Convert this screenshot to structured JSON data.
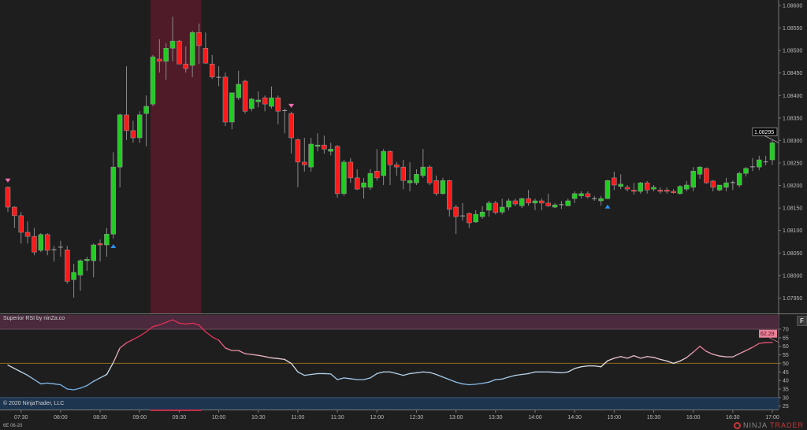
{
  "indicator": {
    "title": "Superior RSI by ninZa.co",
    "last_value_label": "62.29"
  },
  "footer": {
    "copyright": "© 2020 NinjaTrader, LLC",
    "instrument": "6E 06-20",
    "logo_left": "NINJA",
    "logo_right": "TRADER",
    "logo_mark": "®"
  },
  "buttons": {
    "f_label": "F"
  },
  "colors": {
    "background": "#1e1e1e",
    "up": "#22cc22",
    "down": "#ff1a1a",
    "wick": "#8a8a8a",
    "highlight_zone": "#4f1b28",
    "overbought_zone": "#4a2a3c",
    "oversold_zone": "#1e3550",
    "midline": "#8a6a1a",
    "rsi_high": "#e8305a",
    "rsi_low": "#6aaee8",
    "sell_signal": "#ff6fb0",
    "buy_signal": "#2a8ff0",
    "last_price_bg": "#000000"
  },
  "chart_data": [
    {
      "type": "candlestick",
      "title": "",
      "y_axis": {
        "range": [
          1.0792,
          1.0861
        ],
        "ticks": [
          "1.08600",
          "1.08550",
          "1.08500",
          "1.08450",
          "1.08400",
          "1.08350",
          "1.08300",
          "1.08250",
          "1.08200",
          "1.08150",
          "1.08100",
          "1.08050",
          "1.08000",
          "1.07950"
        ],
        "position": "right"
      },
      "x_axis": {
        "ticks": [
          "07:30",
          "08:00",
          "08:30",
          "09:00",
          "09:30",
          "10:00",
          "10:30",
          "11:00",
          "11:30",
          "12:00",
          "12:30",
          "13:00",
          "13:30",
          "14:00",
          "14:30",
          "15:00",
          "15:30",
          "16:00",
          "16:30",
          "17:00"
        ]
      },
      "last_price_label": "1.08295",
      "grid": false,
      "highlight_zone": {
        "from": "09:10",
        "to": "09:45"
      },
      "signals": [
        {
          "time": "07:20",
          "type": "sell"
        },
        {
          "time": "08:40",
          "type": "buy"
        },
        {
          "time": "10:55",
          "type": "sell"
        },
        {
          "time": "14:55",
          "type": "buy"
        }
      ],
      "bars_columns": [
        "time",
        "open",
        "high",
        "low",
        "close"
      ],
      "bars": [
        [
          "07:20",
          1.08196,
          1.08198,
          1.08141,
          1.08152
        ],
        [
          "07:25",
          1.08152,
          1.08154,
          1.08106,
          1.08133
        ],
        [
          "07:30",
          1.08133,
          1.08141,
          1.08071,
          1.08096
        ],
        [
          "07:35",
          1.08096,
          1.0812,
          1.08071,
          1.08087
        ],
        [
          "07:40",
          1.08087,
          1.08106,
          1.08045,
          1.08052
        ],
        [
          "07:45",
          1.08056,
          1.08094,
          1.08052,
          1.08091
        ],
        [
          "07:50",
          1.08091,
          1.08094,
          1.08045,
          1.08056
        ],
        [
          "07:55",
          1.08057,
          1.08066,
          1.08031,
          1.08058
        ],
        [
          "08:00",
          1.08063,
          1.08077,
          1.08042,
          1.08063
        ],
        [
          "08:05",
          1.08057,
          1.08066,
          1.07982,
          1.07987
        ],
        [
          "08:10",
          1.07991,
          1.08026,
          1.07951,
          1.08007
        ],
        [
          "08:15",
          1.08001,
          1.08036,
          1.07966,
          1.08033
        ],
        [
          "08:20",
          1.08033,
          1.08042,
          1.0801,
          1.08036
        ],
        [
          "08:25",
          1.08033,
          1.08071,
          1.07996,
          1.08068
        ],
        [
          "08:30",
          1.08071,
          1.0808,
          1.08031,
          1.08068
        ],
        [
          "08:35",
          1.08068,
          1.08106,
          1.08042,
          1.08092
        ],
        [
          "08:40",
          1.08092,
          1.08274,
          1.08082,
          1.08241
        ],
        [
          "08:45",
          1.08241,
          1.0836,
          1.08196,
          1.08357
        ],
        [
          "08:50",
          1.08357,
          1.08465,
          1.08301,
          1.08322
        ],
        [
          "08:55",
          1.08322,
          1.08344,
          1.08295,
          1.08306
        ],
        [
          "09:00",
          1.08306,
          1.08365,
          1.08295,
          1.08357
        ],
        [
          "09:05",
          1.0836,
          1.084,
          1.08287,
          1.08376
        ],
        [
          "09:10",
          1.08381,
          1.0849,
          1.08376,
          1.08486
        ],
        [
          "09:15",
          1.08481,
          1.08525,
          1.08451,
          1.08476
        ],
        [
          "09:20",
          1.08476,
          1.08516,
          1.08435,
          1.08505
        ],
        [
          "09:25",
          1.08505,
          1.08575,
          1.08476,
          1.08521
        ],
        [
          "09:30",
          1.08521,
          1.08523,
          1.0847,
          1.0847
        ],
        [
          "09:35",
          1.0847,
          1.08509,
          1.08451,
          1.0846
        ],
        [
          "09:40",
          1.08467,
          1.08544,
          1.08441,
          1.0854
        ],
        [
          "09:45",
          1.0854,
          1.0856,
          1.0847,
          1.08511
        ],
        [
          "09:50",
          1.08505,
          1.0854,
          1.0847,
          1.08472
        ],
        [
          "09:55",
          1.0847,
          1.0849,
          1.08437,
          1.08441
        ],
        [
          "10:00",
          1.08441,
          1.08465,
          1.08421,
          1.0844
        ],
        [
          "10:05",
          1.08441,
          1.08451,
          1.08332,
          1.08341
        ],
        [
          "10:10",
          1.08341,
          1.08406,
          1.08325,
          1.08406
        ],
        [
          "10:15",
          1.08395,
          1.08455,
          1.0839,
          1.08425
        ],
        [
          "10:20",
          1.08432,
          1.08435,
          1.0836,
          1.08365
        ],
        [
          "10:25",
          1.08371,
          1.08395,
          1.08365,
          1.08392
        ],
        [
          "10:30",
          1.08386,
          1.08409,
          1.08374,
          1.0839
        ],
        [
          "10:35",
          1.08395,
          1.084,
          1.08365,
          1.08381
        ],
        [
          "10:40",
          1.08376,
          1.0842,
          1.08371,
          1.08395
        ],
        [
          "10:45",
          1.08395,
          1.084,
          1.08336,
          1.08365
        ],
        [
          "10:50",
          1.08367,
          1.08371,
          1.08316,
          1.08366
        ],
        [
          "10:55",
          1.0836,
          1.08364,
          1.08271,
          1.08306
        ],
        [
          "11:00",
          1.08302,
          1.08304,
          1.08196,
          1.08252
        ],
        [
          "11:05",
          1.08252,
          1.08306,
          1.08231,
          1.08246
        ],
        [
          "11:10",
          1.08241,
          1.08306,
          1.08231,
          1.08292
        ],
        [
          "11:15",
          1.08287,
          1.08316,
          1.08276,
          1.0829
        ],
        [
          "11:20",
          1.0829,
          1.08311,
          1.08271,
          1.08281
        ],
        [
          "11:25",
          1.08276,
          1.08295,
          1.08267,
          1.08281
        ],
        [
          "11:30",
          1.08287,
          1.0829,
          1.08173,
          1.08182
        ],
        [
          "11:35",
          1.08182,
          1.08257,
          1.08177,
          1.08252
        ],
        [
          "11:40",
          1.08252,
          1.08261,
          1.08206,
          1.08217
        ],
        [
          "11:45",
          1.08217,
          1.08236,
          1.0819,
          1.08192
        ],
        [
          "11:50",
          1.08196,
          1.08217,
          1.08171,
          1.08206
        ],
        [
          "11:55",
          1.08196,
          1.08236,
          1.0819,
          1.08227
        ],
        [
          "12:00",
          1.08232,
          1.08281,
          1.08211,
          1.08217
        ],
        [
          "12:05",
          1.08222,
          1.08281,
          1.08201,
          1.08276
        ],
        [
          "12:10",
          1.08276,
          1.08278,
          1.08201,
          1.08246
        ],
        [
          "12:15",
          1.08246,
          1.08252,
          1.08222,
          1.08241
        ],
        [
          "12:20",
          1.08241,
          1.08257,
          1.08192,
          1.08211
        ],
        [
          "12:25",
          1.08206,
          1.08252,
          1.08187,
          1.08211
        ],
        [
          "12:30",
          1.08206,
          1.08236,
          1.08201,
          1.08225
        ],
        [
          "12:35",
          1.08222,
          1.08281,
          1.08217,
          1.08241
        ],
        [
          "12:40",
          1.08241,
          1.08245,
          1.08201,
          1.08206
        ],
        [
          "12:45",
          1.08211,
          1.08222,
          1.08177,
          1.08182
        ],
        [
          "12:50",
          1.08182,
          1.08217,
          1.0818,
          1.08211
        ],
        [
          "12:55",
          1.08211,
          1.08213,
          1.08131,
          1.08147
        ],
        [
          "13:00",
          1.08152,
          1.08157,
          1.08092,
          1.08131
        ],
        [
          "13:05",
          1.08133,
          1.08161,
          1.08122,
          1.08132
        ],
        [
          "13:10",
          1.08138,
          1.0814,
          1.08106,
          1.08117
        ],
        [
          "13:15",
          1.08119,
          1.08145,
          1.08117,
          1.08136
        ],
        [
          "13:20",
          1.08131,
          1.08154,
          1.08126,
          1.08141
        ],
        [
          "13:25",
          1.08145,
          1.08166,
          1.08131,
          1.08161
        ],
        [
          "13:30",
          1.08161,
          1.08166,
          1.08136,
          1.0814
        ],
        [
          "13:35",
          1.08141,
          1.08171,
          1.08136,
          1.08152
        ],
        [
          "13:40",
          1.08152,
          1.08171,
          1.08145,
          1.08166
        ],
        [
          "13:45",
          1.08166,
          1.08171,
          1.08154,
          1.08159
        ],
        [
          "13:50",
          1.08155,
          1.08173,
          1.0815,
          1.08171
        ],
        [
          "13:55",
          1.08171,
          1.0819,
          1.08155,
          1.08161
        ],
        [
          "14:00",
          1.08161,
          1.08171,
          1.08145,
          1.08166
        ],
        [
          "14:05",
          1.08166,
          1.08171,
          1.08145,
          1.08161
        ],
        [
          "14:10",
          1.08161,
          1.08182,
          1.08152,
          1.08155
        ],
        [
          "14:15",
          1.08152,
          1.08161,
          1.0815,
          1.08157
        ],
        [
          "14:20",
          1.08157,
          1.08166,
          1.08148,
          1.08158
        ],
        [
          "14:25",
          1.08155,
          1.08171,
          1.08154,
          1.08166
        ],
        [
          "14:30",
          1.08171,
          1.08187,
          1.08161,
          1.08182
        ],
        [
          "14:35",
          1.08177,
          1.08187,
          1.08171,
          1.08182
        ],
        [
          "14:40",
          1.08182,
          1.08187,
          1.08171,
          1.08175
        ],
        [
          "14:45",
          1.08171,
          1.08177,
          1.08166,
          1.0817
        ],
        [
          "14:50",
          1.08166,
          1.08177,
          1.08155,
          1.08171
        ],
        [
          "14:55",
          1.08171,
          1.08213,
          1.0817,
          1.08211
        ],
        [
          "15:00",
          1.08217,
          1.08231,
          1.0819,
          1.08201
        ],
        [
          "15:05",
          1.08198,
          1.08225,
          1.08192,
          1.08203
        ],
        [
          "15:10",
          1.08196,
          1.08201,
          1.08187,
          1.08192
        ],
        [
          "15:15",
          1.0819,
          1.08206,
          1.0818,
          1.08187
        ],
        [
          "15:20",
          1.08187,
          1.08208,
          1.08182,
          1.08206
        ],
        [
          "15:25",
          1.08206,
          1.0821,
          1.08182,
          1.0819
        ],
        [
          "15:30",
          1.08192,
          1.08201,
          1.08187,
          1.08196
        ],
        [
          "15:35",
          1.0819,
          1.08196,
          1.08182,
          1.08187
        ],
        [
          "15:40",
          1.0819,
          1.08196,
          1.08182,
          1.08187
        ],
        [
          "15:45",
          1.08187,
          1.08192,
          1.08182,
          1.08184
        ],
        [
          "15:50",
          1.08182,
          1.08201,
          1.0818,
          1.08198
        ],
        [
          "15:55",
          1.08192,
          1.0821,
          1.08187,
          1.08201
        ],
        [
          "16:00",
          1.08196,
          1.08241,
          1.08187,
          1.08232
        ],
        [
          "16:05",
          1.08225,
          1.08243,
          1.08215,
          1.08241
        ],
        [
          "16:10",
          1.08238,
          1.0824,
          1.08204,
          1.08206
        ],
        [
          "16:15",
          1.0821,
          1.08212,
          1.08187,
          1.08196
        ],
        [
          "16:20",
          1.0819,
          1.08201,
          1.08187,
          1.08201
        ],
        [
          "16:25",
          1.08196,
          1.08217,
          1.08187,
          1.08206
        ],
        [
          "16:30",
          1.08206,
          1.08211,
          1.0819,
          1.08207
        ],
        [
          "16:35",
          1.08201,
          1.08231,
          1.08196,
          1.08227
        ],
        [
          "16:40",
          1.08227,
          1.08241,
          1.0822,
          1.08238
        ],
        [
          "16:45",
          1.08241,
          1.08261,
          1.08232,
          1.08242
        ],
        [
          "16:50",
          1.08241,
          1.08266,
          1.08234,
          1.08257
        ],
        [
          "16:55",
          1.08252,
          1.08266,
          1.08245,
          1.08253
        ],
        [
          "17:00",
          1.08257,
          1.08301,
          1.08246,
          1.08295
        ]
      ]
    },
    {
      "type": "line",
      "title": "Superior RSI by ninZa.co",
      "y_axis": {
        "range": [
          22.5,
          77.5
        ],
        "ticks": [
          "70",
          "65",
          "60",
          "55",
          "50",
          "45",
          "40",
          "35",
          "30",
          "25"
        ],
        "position": "right"
      },
      "overbought": 70,
      "oversold": 30,
      "midline": 50,
      "values": [
        49,
        47,
        45,
        43,
        40.5,
        38,
        38.5,
        38,
        37.5,
        35,
        34.5,
        35.5,
        37,
        39.5,
        41.5,
        43.5,
        50.5,
        59,
        62,
        64,
        66,
        68.5,
        71.5,
        72.5,
        74,
        75.5,
        73.5,
        73,
        73.5,
        72.5,
        68.5,
        65.5,
        63.5,
        59,
        57.5,
        57.5,
        55.7,
        55.2,
        54.7,
        54,
        53.2,
        52.8,
        52.3,
        50,
        45,
        43,
        43.5,
        44,
        44,
        43.8,
        40.5,
        41.5,
        41,
        40.5,
        40.5,
        41.5,
        44,
        45,
        45,
        44,
        43,
        44,
        44.5,
        45,
        44.7,
        43.5,
        42,
        40.5,
        39,
        38,
        37.5,
        37.8,
        38.3,
        39,
        40.5,
        40.8,
        42,
        43,
        43.5,
        44,
        45,
        45,
        45,
        44.8,
        44.5,
        45,
        47,
        48,
        48.5,
        48.5,
        48,
        51.5,
        53,
        54,
        53,
        54.5,
        53,
        54,
        53.5,
        52.3,
        51.4,
        50,
        51.4,
        53.4,
        56.6,
        60,
        57,
        55.3,
        54.3,
        53.8,
        53.8,
        55.7,
        57.5,
        59.4,
        61.7,
        62.2,
        62.29
      ]
    }
  ]
}
